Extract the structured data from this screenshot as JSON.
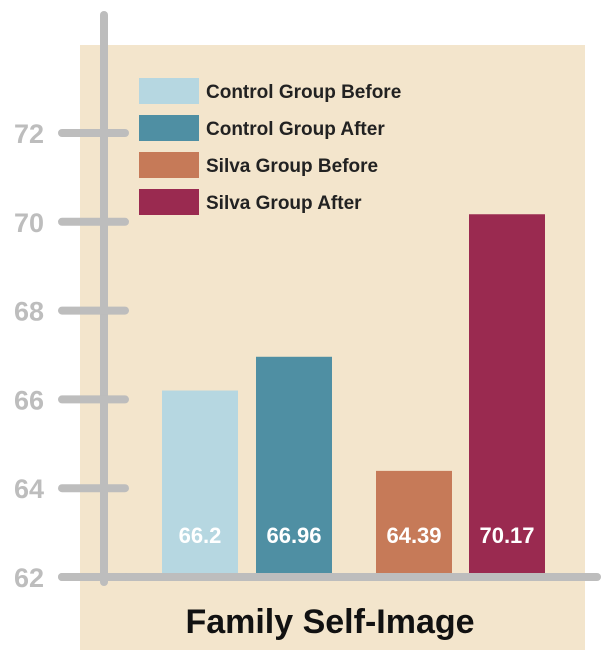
{
  "chart_data": {
    "type": "bar",
    "title": "",
    "xlabel": "Family Self-Image",
    "ylabel": "",
    "ylim": [
      62,
      73
    ],
    "yticks": [
      62,
      64,
      66,
      68,
      70,
      72
    ],
    "grid": false,
    "legend_position": "top-left",
    "background_color": "#f3e5cc",
    "axis_color": "#bdbdbd",
    "series": [
      {
        "name": "Control Group Before",
        "value": 66.2,
        "label": "66.2",
        "color": "#b6d7e1"
      },
      {
        "name": "Control Group After",
        "value": 66.96,
        "label": "66.96",
        "color": "#4f8fa3"
      },
      {
        "name": "Silva Group Before",
        "value": 64.39,
        "label": "64.39",
        "color": "#c67a58"
      },
      {
        "name": "Silva Group After",
        "value": 70.17,
        "label": "70.17",
        "color": "#9a2a50"
      }
    ]
  }
}
